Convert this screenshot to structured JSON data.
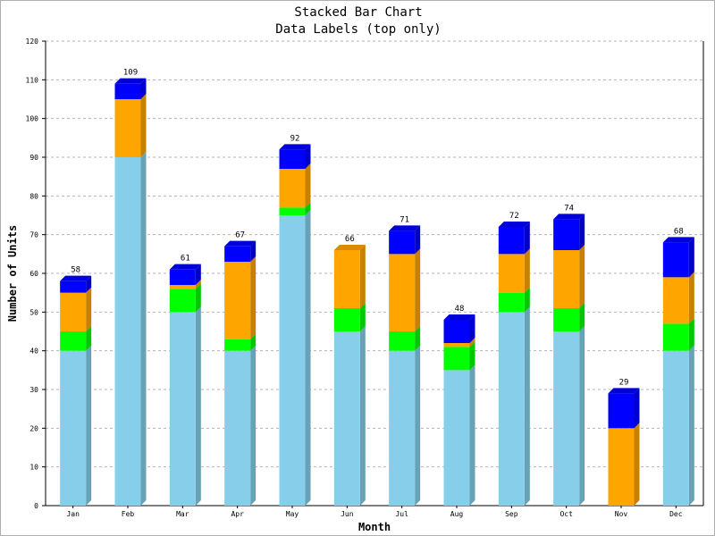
{
  "chart_data": {
    "type": "bar",
    "stacked": true,
    "three_d": true,
    "title": "Stacked Bar Chart",
    "subtitle": "Data Labels (top only)",
    "xlabel": "Month",
    "ylabel": "Number of Units",
    "ylim": [
      0,
      120
    ],
    "y_ticks": [
      0,
      10,
      20,
      30,
      40,
      50,
      60,
      70,
      80,
      90,
      100,
      110,
      120
    ],
    "grid": true,
    "categories": [
      "Jan",
      "Feb",
      "Mar",
      "Apr",
      "May",
      "Jun",
      "Jul",
      "Aug",
      "Sep",
      "Oct",
      "Nov",
      "Dec"
    ],
    "series": [
      {
        "color": "#87ceeb",
        "values": [
          40,
          90,
          50,
          40,
          75,
          45,
          40,
          35,
          50,
          45,
          0,
          40
        ]
      },
      {
        "color": "#00ff00",
        "values": [
          5,
          0,
          6,
          3,
          2,
          6,
          5,
          6,
          5,
          6,
          0,
          7
        ]
      },
      {
        "color": "#ffa500",
        "values": [
          10,
          15,
          1,
          20,
          10,
          15,
          20,
          1,
          10,
          15,
          20,
          12
        ]
      },
      {
        "color": "#0000ff",
        "values": [
          3,
          4,
          4,
          4,
          5,
          0,
          6,
          6,
          7,
          8,
          9,
          9
        ]
      }
    ],
    "top_labels": [
      "58",
      "109",
      "61",
      "67",
      "92",
      "66",
      "71",
      "48",
      "72",
      "74",
      "29",
      "68"
    ]
  }
}
